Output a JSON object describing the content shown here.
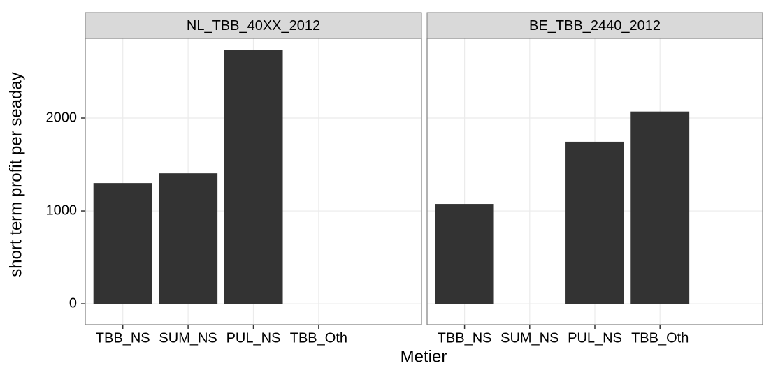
{
  "chart_data": {
    "type": "bar",
    "color": "#333333",
    "x_label": "Metier",
    "y_label": "short term profit per seaday",
    "ylim": [
      -225,
      2857
    ],
    "yticks": [
      0,
      1000,
      2000
    ],
    "grid": true,
    "panels": [
      {
        "title": "NL_TBB_40XX_2012",
        "categories": [
          "TBB_NS",
          "SUM_NS",
          "PUL_NS",
          "TBB_Oth"
        ],
        "values": [
          1300,
          1405,
          2730,
          null
        ]
      },
      {
        "title": "BE_TBB_2440_2012",
        "categories": [
          "TBB_NS",
          "SUM_NS",
          "PUL_NS",
          "TBB_Oth"
        ],
        "values": [
          1075,
          null,
          1745,
          2070
        ]
      }
    ]
  }
}
